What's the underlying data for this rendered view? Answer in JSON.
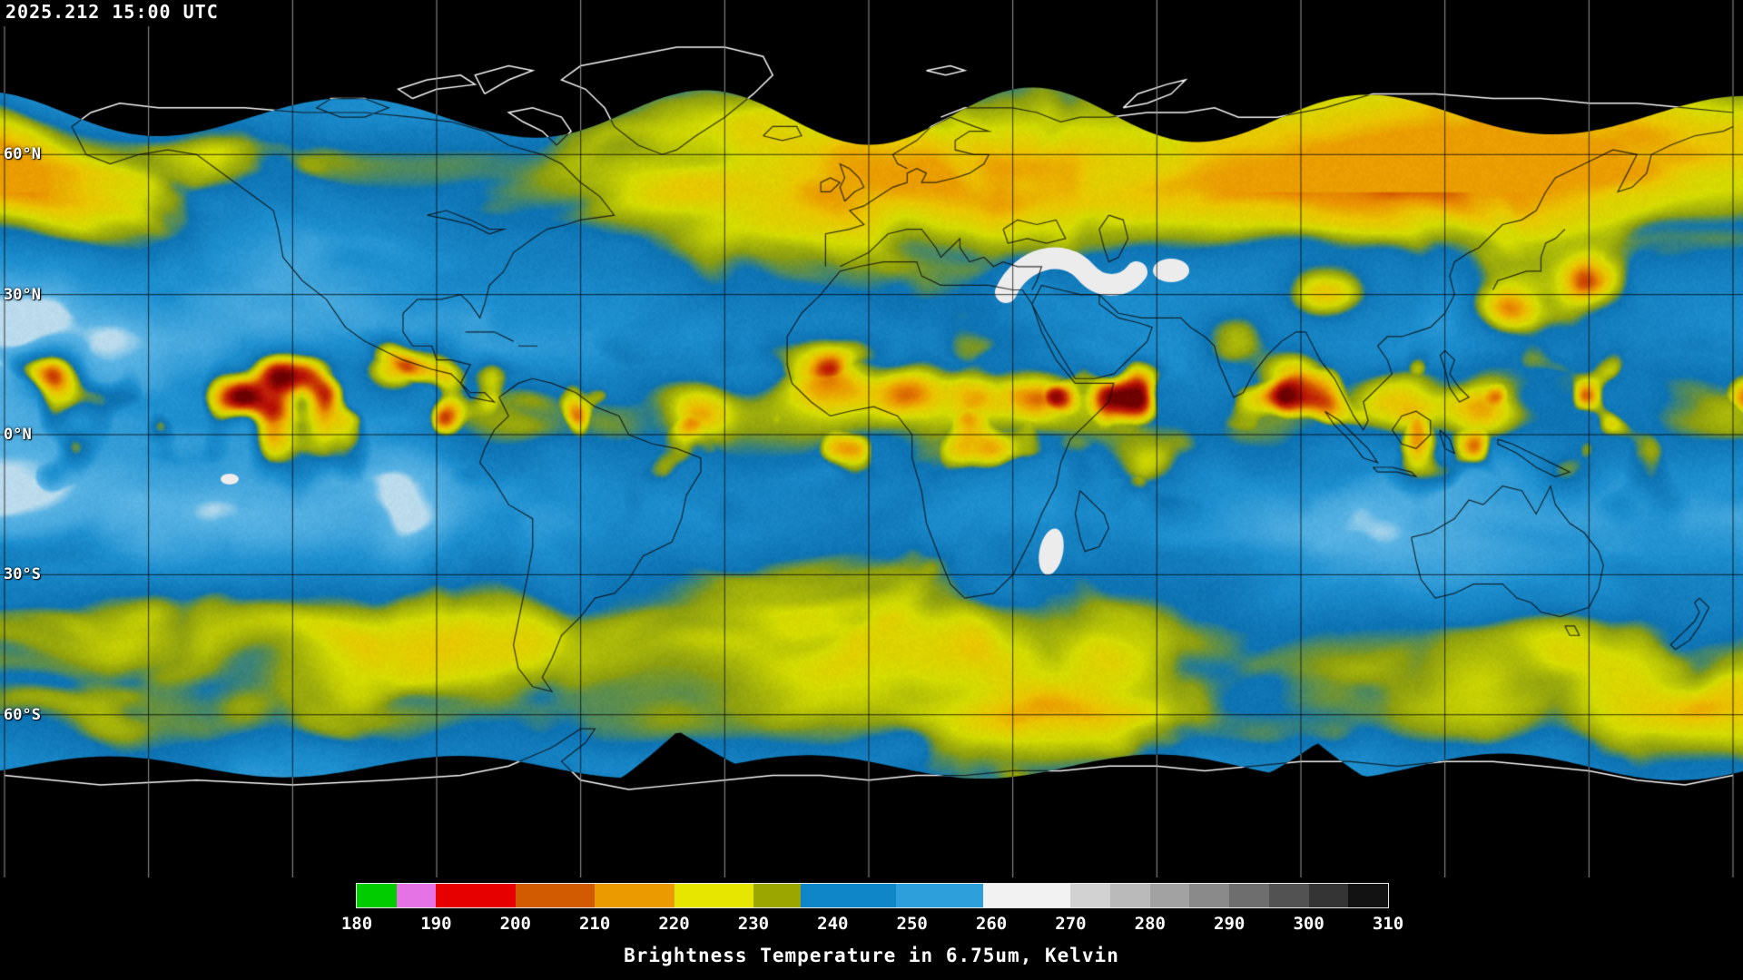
{
  "header": {
    "timestamp": "2025.212 15:00 UTC"
  },
  "map": {
    "projection": "equirectangular",
    "grid_step_deg": 30,
    "latitude_labels": [
      {
        "label": "60°N",
        "lat": 60
      },
      {
        "label": "30°N",
        "lat": 30
      },
      {
        "label": "0°N",
        "lat": 0
      },
      {
        "label": "30°S",
        "lat": -30
      },
      {
        "label": "60°S",
        "lat": -60
      }
    ]
  },
  "colorbar": {
    "caption": "Brightness Temperature in 6.75um, Kelvin",
    "units": "Kelvin",
    "min_k": 180,
    "max_k": 310,
    "ticks": [
      180,
      190,
      200,
      210,
      220,
      230,
      240,
      250,
      260,
      270,
      280,
      290,
      300,
      310
    ],
    "segments": [
      {
        "from": 180,
        "to": 185,
        "color": "#00cc00"
      },
      {
        "from": 185,
        "to": 190,
        "color": "#e673e6"
      },
      {
        "from": 190,
        "to": 200,
        "color": "#e60000"
      },
      {
        "from": 200,
        "to": 210,
        "color": "#d25a00"
      },
      {
        "from": 210,
        "to": 220,
        "color": "#eb9b00"
      },
      {
        "from": 220,
        "to": 230,
        "color": "#e6e600"
      },
      {
        "from": 230,
        "to": 236,
        "color": "#9ca600"
      },
      {
        "from": 236,
        "to": 248,
        "color": "#0f86c8"
      },
      {
        "from": 248,
        "to": 259,
        "color": "#2da0dc"
      },
      {
        "from": 259,
        "to": 270,
        "color": "#f2f2f2"
      },
      {
        "from": 270,
        "to": 275,
        "color": "#d2d2d2"
      },
      {
        "from": 275,
        "to": 280,
        "color": "#bababa"
      },
      {
        "from": 280,
        "to": 285,
        "color": "#a2a2a2"
      },
      {
        "from": 285,
        "to": 290,
        "color": "#8a8a8a"
      },
      {
        "from": 290,
        "to": 295,
        "color": "#6e6e6e"
      },
      {
        "from": 295,
        "to": 300,
        "color": "#525252"
      },
      {
        "from": 300,
        "to": 305,
        "color": "#343434"
      },
      {
        "from": 305,
        "to": 310,
        "color": "#121212"
      }
    ]
  }
}
